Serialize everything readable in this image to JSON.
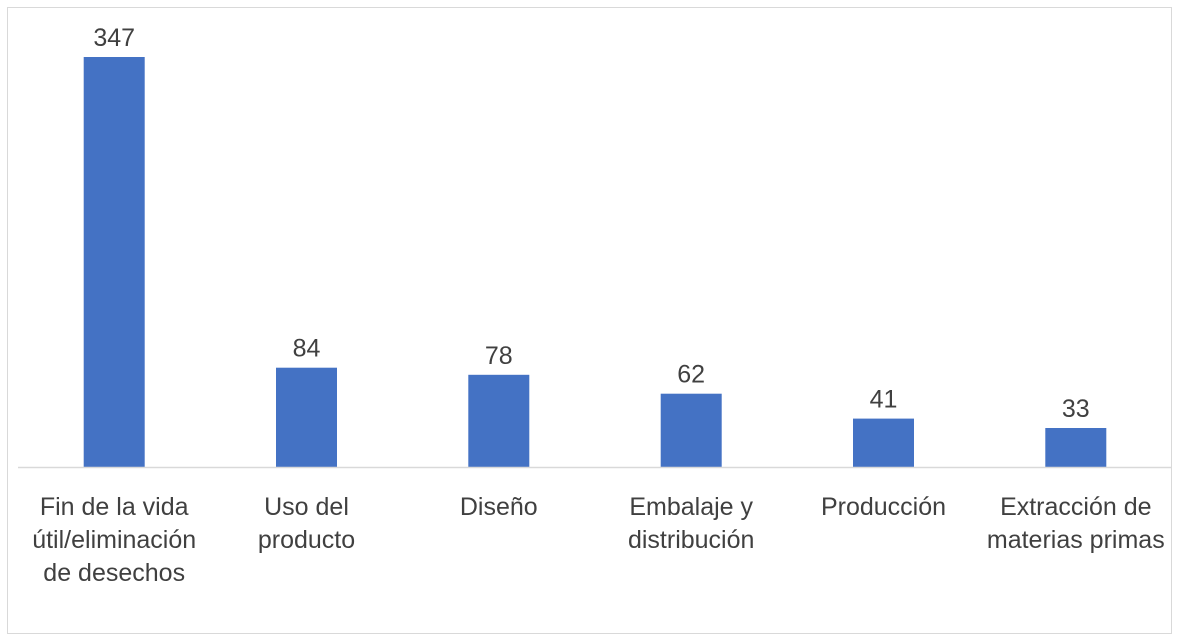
{
  "chart_data": {
    "type": "bar",
    "categories": [
      "Fin de la vida útil/eliminación de desechos",
      "Uso del producto",
      "Diseño",
      "Embalaje y distribución",
      "Producción",
      "Extracción de materias primas"
    ],
    "category_lines": [
      [
        "Fin de la vida",
        "útil/eliminación",
        "de desechos"
      ],
      [
        "Uso del",
        "producto"
      ],
      [
        "Diseño"
      ],
      [
        "Embalaje y",
        "distribución"
      ],
      [
        "Producción"
      ],
      [
        "Extracción de",
        "materias primas"
      ]
    ],
    "values": [
      347,
      84,
      78,
      62,
      41,
      33
    ],
    "data_labels": [
      "347",
      "84",
      "78",
      "62",
      "41",
      "33"
    ],
    "title": "",
    "xlabel": "",
    "ylabel": "",
    "ylim": [
      0,
      347
    ],
    "grid": false,
    "legend": "none",
    "colors": {
      "bar": "#4472C4",
      "axis": "#D9D9D9",
      "frame": "#D9D9D9",
      "text": "#404040"
    }
  }
}
